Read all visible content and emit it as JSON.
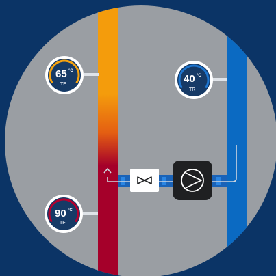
{
  "colors": {
    "background": "#0b3466",
    "circle": "#9a9ea3",
    "hot_pipe_top": "#f49c0c",
    "hot_pipe_bottom": "#a5002a",
    "cold_pipe": "#0b6ac2",
    "connector": "#1a63b8",
    "pump_body": "#1f2022",
    "valve_body": "#ffffff",
    "gauge_bg": "#163a66"
  },
  "gauges": [
    {
      "id": "supply-top",
      "value": "65",
      "unit": "°C",
      "label": "TF",
      "arc_color": "#f5a20f"
    },
    {
      "id": "return",
      "value": "40",
      "unit": "°C",
      "label": "TR",
      "arc_color": "#1e76d0"
    },
    {
      "id": "supply-bottom",
      "value": "90",
      "unit": "°C",
      "label": "TF",
      "arc_color": "#b3002e"
    }
  ],
  "icons": {
    "valve": "bowtie-valve-icon",
    "pump": "circulation-pump-icon",
    "flow_arrow": "arrow-up-icon"
  }
}
